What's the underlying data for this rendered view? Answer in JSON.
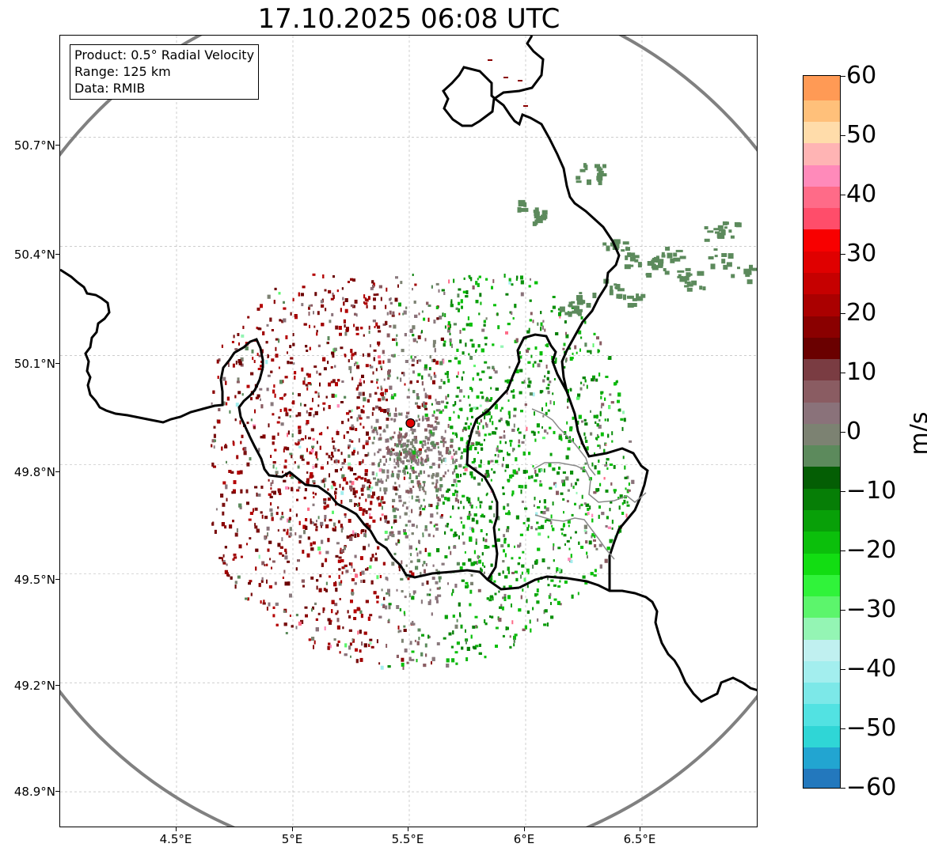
{
  "title": "17.10.2025 06:08 UTC",
  "info": {
    "product": "Product: 0.5° Radial Velocity",
    "range": "Range: 125 km",
    "source": "Data: RMIB"
  },
  "axes": {
    "lat_ticks": [
      "50.7°N",
      "50.4°N",
      "50.1°N",
      "49.8°N",
      "49.5°N",
      "49.2°N",
      "48.9°N"
    ],
    "lon_ticks": [
      "4.5°E",
      "5°E",
      "5.5°E",
      "6°E",
      "6.5°E"
    ]
  },
  "map_extent": {
    "lon_min": 4.0,
    "lon_max": 7.0,
    "lat_min": 48.8,
    "lat_max": 50.98
  },
  "radar": {
    "lon": 5.505,
    "lat": 49.914,
    "range_km": 125
  },
  "colorbar": {
    "unit": "m/s",
    "min": -60,
    "max": 60,
    "tick_values": [
      60,
      50,
      40,
      30,
      20,
      10,
      0,
      -10,
      -20,
      -30,
      -40,
      -50,
      -60
    ],
    "tick_labels": [
      "60",
      "50",
      "40",
      "30",
      "20",
      "10",
      "0",
      "−10",
      "−20",
      "−30",
      "−40",
      "−50",
      "−60"
    ]
  },
  "colors": {
    "radar_circle": "#808080",
    "border": "#000000",
    "sub_border": "#8a8a8a",
    "grid": "#b0b0b0",
    "radar_site": "#e00000",
    "colormap": [
      "#2378bd",
      "#22a5d1",
      "#2fd6d6",
      "#52e2e2",
      "#7ce8e8",
      "#a3eeee",
      "#c0f0f0",
      "#94f5b4",
      "#5cf56c",
      "#30f33a",
      "#12dd12",
      "#0bbf0b",
      "#08a008",
      "#067e06",
      "#045e04",
      "#5c8a5c",
      "#7c8272",
      "#8a727a",
      "#8a5c62",
      "#7a3c42",
      "#6a0000",
      "#8a0000",
      "#aa0000",
      "#c60000",
      "#e00000",
      "#f80000",
      "#ff4d6a",
      "#ff6b88",
      "#ff8aba",
      "#ffb4b4",
      "#ffdcaa",
      "#ffc07a",
      "#ff9a55"
    ]
  }
}
